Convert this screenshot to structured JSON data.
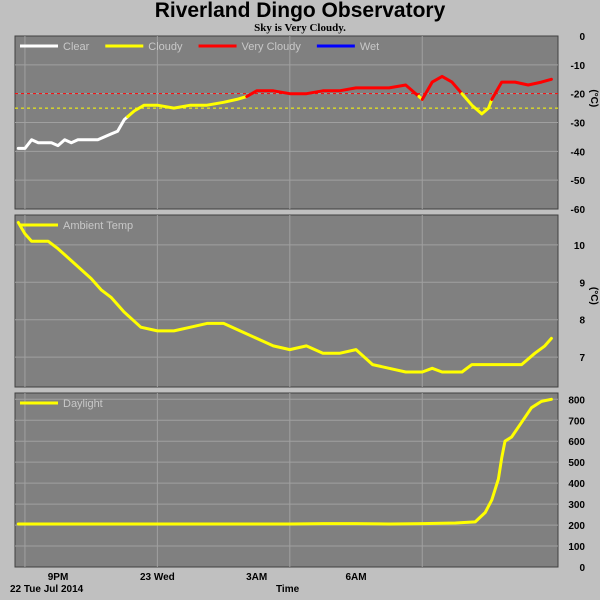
{
  "page": {
    "title": "Riverland Dingo Observatory",
    "subtitle": "Sky is Very Cloudy.",
    "date_label": "22 Tue Jul 2014",
    "time_label": "Time"
  },
  "chart_data": [
    {
      "type": "line",
      "name": "sky",
      "unit": "(°C)",
      "ylim": [
        -60,
        0
      ],
      "yticks": [
        0,
        -10,
        -20,
        -30,
        -40,
        -50,
        -60
      ],
      "grid": true,
      "legend_placement": "top-left",
      "thresholds": [
        {
          "value": -20,
          "color": "#ff0000",
          "style": "dashed"
        },
        {
          "value": -25,
          "color": "#ffff00",
          "style": "dashed"
        }
      ],
      "legend": [
        {
          "label": "Clear",
          "color": "#ffffff"
        },
        {
          "label": "Cloudy",
          "color": "#ffff00"
        },
        {
          "label": "Very Cloudy",
          "color": "#ff0000"
        },
        {
          "label": "Wet",
          "color": "#0000ff"
        }
      ],
      "series": [
        {
          "legend_index": 0,
          "color": "#ffffff",
          "x": [
            19.8,
            20.0,
            20.2,
            20.4,
            20.6,
            20.8,
            21.0,
            21.2,
            21.4,
            21.6,
            21.8,
            22.0,
            22.2,
            22.4,
            22.6,
            22.8,
            23.0,
            23.1
          ],
          "y": [
            -39,
            -39,
            -36,
            -37,
            -37,
            -37,
            -38,
            -36,
            -37,
            -36,
            -36,
            -36,
            -36,
            -35,
            -34,
            -33,
            -29,
            -28
          ]
        },
        {
          "legend_index": 1,
          "color": "#ffff00",
          "x": [
            23.1,
            23.3,
            23.6,
            24.0,
            24.5,
            25.0,
            25.5,
            26.0,
            26.4,
            26.7
          ],
          "y": [
            -28,
            -26,
            -24,
            -24,
            -25,
            -24,
            -24,
            -23,
            -22,
            -21
          ]
        },
        {
          "legend_index": 2,
          "color": "#ff0000",
          "x": [
            26.7,
            27.0,
            27.5,
            28.0,
            28.5,
            29.0,
            29.5,
            30.0,
            30.5,
            31.0,
            31.5,
            31.9
          ],
          "y": [
            -21,
            -19,
            -19,
            -20,
            -20,
            -19,
            -19,
            -18,
            -18,
            -18,
            -17,
            -21
          ]
        },
        {
          "legend_index": 1,
          "color": "#ffff00",
          "x": [
            31.9,
            32.0
          ],
          "y": [
            -21,
            -22
          ]
        },
        {
          "legend_index": 2,
          "color": "#ff0000",
          "x": [
            32.0,
            32.3,
            32.6,
            32.9,
            33.2
          ],
          "y": [
            -22,
            -16,
            -14,
            -16,
            -20
          ]
        },
        {
          "legend_index": 1,
          "color": "#ffff00",
          "x": [
            33.2,
            33.5,
            33.8,
            34.0,
            34.1
          ],
          "y": [
            -20,
            -24,
            -27,
            -25,
            -22
          ]
        },
        {
          "legend_index": 2,
          "color": "#ff0000",
          "x": [
            34.1,
            34.4,
            34.8,
            35.2,
            35.6,
            35.9
          ],
          "y": [
            -22,
            -16,
            -16,
            -17,
            -16,
            -15
          ]
        }
      ]
    },
    {
      "type": "line",
      "name": "ambient",
      "unit": "(°C)",
      "ylim": [
        6.2,
        10.8
      ],
      "yticks": [
        7,
        8,
        9,
        10
      ],
      "grid": true,
      "legend_placement": "top-left",
      "legend": [
        {
          "label": "Ambient Temp",
          "color": "#ffff00"
        }
      ],
      "series": [
        {
          "legend_index": 0,
          "color": "#ffff00",
          "x": [
            19.8,
            20.0,
            20.2,
            20.5,
            20.7,
            21.0,
            21.5,
            22.0,
            22.3,
            22.6,
            23.0,
            23.5,
            24.0,
            24.5,
            25.0,
            25.5,
            26.0,
            26.5,
            27.0,
            27.5,
            28.0,
            28.5,
            29.0,
            29.5,
            30.0,
            30.5,
            31.0,
            31.5,
            32.0,
            32.3,
            32.6,
            32.9,
            33.2,
            33.5,
            33.8,
            34.2,
            34.6,
            35.0,
            35.4,
            35.7,
            35.9
          ],
          "y": [
            10.6,
            10.3,
            10.1,
            10.1,
            10.1,
            9.9,
            9.5,
            9.1,
            8.8,
            8.6,
            8.2,
            7.8,
            7.7,
            7.7,
            7.8,
            7.9,
            7.9,
            7.7,
            7.5,
            7.3,
            7.2,
            7.3,
            7.1,
            7.1,
            7.2,
            6.8,
            6.7,
            6.6,
            6.6,
            6.7,
            6.6,
            6.6,
            6.6,
            6.8,
            6.8,
            6.8,
            6.8,
            6.8,
            7.1,
            7.3,
            7.5
          ]
        }
      ]
    },
    {
      "type": "line",
      "name": "daylight",
      "unit": "",
      "ylim": [
        0,
        830
      ],
      "yticks": [
        0,
        100,
        200,
        300,
        400,
        500,
        600,
        700,
        800
      ],
      "grid": true,
      "legend_placement": "top-left",
      "legend": [
        {
          "label": "Daylight",
          "color": "#ffff00"
        }
      ],
      "series": [
        {
          "legend_index": 0,
          "color": "#ffff00",
          "x": [
            19.8,
            21.0,
            22.0,
            23.0,
            24.0,
            25.0,
            26.0,
            27.0,
            28.0,
            29.0,
            30.0,
            31.0,
            32.0,
            33.0,
            33.6,
            33.9,
            34.1,
            34.3,
            34.4,
            34.5,
            34.7,
            35.0,
            35.3,
            35.6,
            35.9
          ],
          "y": [
            205,
            205,
            205,
            205,
            205,
            205,
            205,
            205,
            205,
            207,
            207,
            205,
            207,
            210,
            215,
            260,
            320,
            420,
            520,
            600,
            620,
            690,
            760,
            790,
            800
          ]
        }
      ]
    }
  ],
  "x_axis": {
    "xlim": [
      19.7,
      36.1
    ],
    "grid_x": [
      20,
      24,
      28,
      32
    ],
    "ticks": [
      {
        "x": 21,
        "label": "9PM"
      },
      {
        "x": 24,
        "label": "23 Wed"
      },
      {
        "x": 27,
        "label": "3AM"
      },
      {
        "x": 30,
        "label": "6AM"
      }
    ]
  }
}
